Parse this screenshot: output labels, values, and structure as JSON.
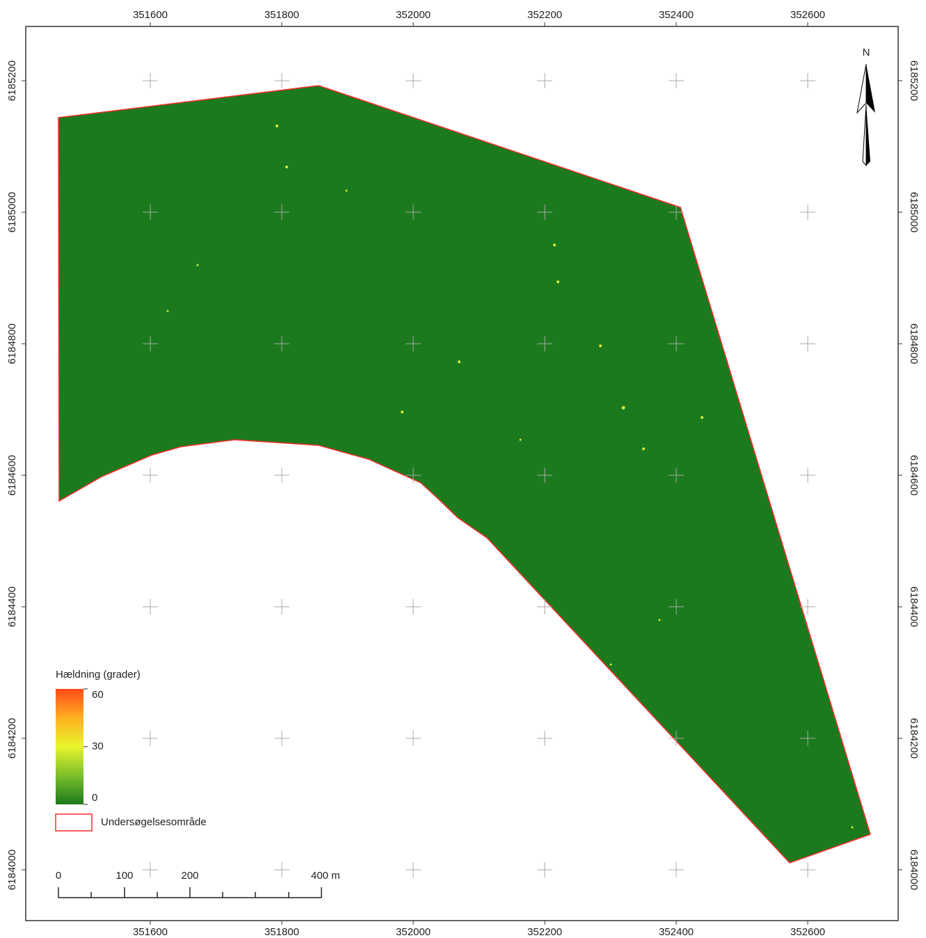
{
  "map": {
    "x_ticks": [
      351600,
      351800,
      352000,
      352200,
      352400,
      352600
    ],
    "y_ticks": [
      6184000,
      6184200,
      6184400,
      6184600,
      6184800,
      6185000,
      6185200
    ],
    "north": "N",
    "legend": {
      "title": "Hældning (grader)",
      "ramp_labels": [
        "60",
        "30",
        "0"
      ],
      "area_label": "Undersøgelsesområde"
    },
    "scale_bar": {
      "labels": [
        "0",
        "100",
        "200",
        "400 m"
      ]
    }
  }
}
